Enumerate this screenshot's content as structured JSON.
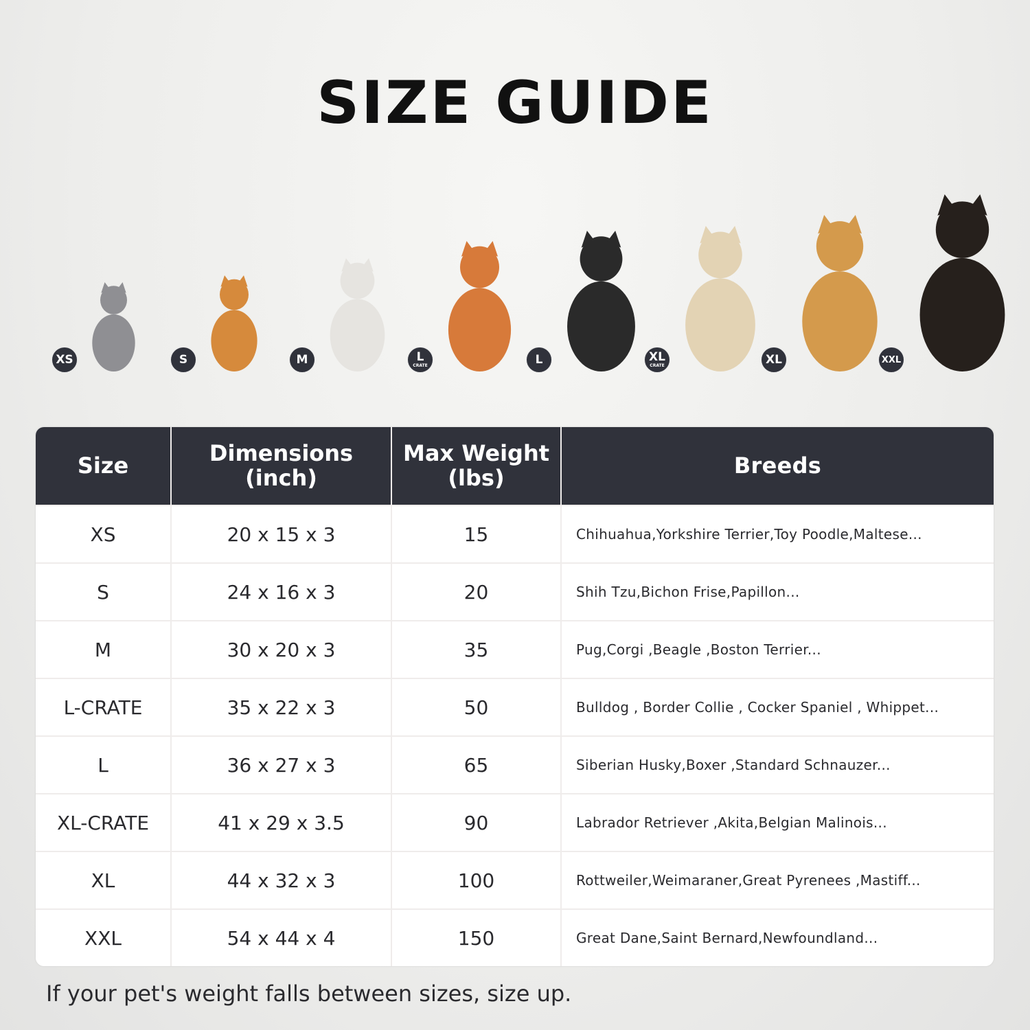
{
  "title": "SIZE GUIDE",
  "pets": [
    {
      "badge": "XS",
      "sub": "",
      "animal": "cat",
      "color": "#8f8f93"
    },
    {
      "badge": "S",
      "sub": "",
      "animal": "pomeranian",
      "color": "#d68a3c"
    },
    {
      "badge": "M",
      "sub": "",
      "animal": "french-bulldog",
      "color": "#e6e4e0"
    },
    {
      "badge": "L",
      "sub": "CRATE",
      "animal": "shiba-inu",
      "color": "#d77a3a"
    },
    {
      "badge": "L",
      "sub": "",
      "animal": "border-collie",
      "color": "#2a2a2a"
    },
    {
      "badge": "XL",
      "sub": "CRATE",
      "animal": "labrador",
      "color": "#e3d3b4"
    },
    {
      "badge": "XL",
      "sub": "",
      "animal": "golden-retriever",
      "color": "#d49a4c"
    },
    {
      "badge": "XXL",
      "sub": "",
      "animal": "doberman",
      "color": "#26201c"
    }
  ],
  "table": {
    "headers": {
      "size": "Size",
      "dimensions": "Dimensions\n(inch)",
      "weight": "Max Weight\n(lbs)",
      "breeds": "Breeds"
    },
    "rows": [
      {
        "size": "XS",
        "dimensions": "20 x 15 x 3",
        "weight": "15",
        "breeds": "Chihuahua,Yorkshire Terrier,Toy Poodle,Maltese..."
      },
      {
        "size": "S",
        "dimensions": "24 x 16 x 3",
        "weight": "20",
        "breeds": "Shih Tzu,Bichon Frise,Papillon..."
      },
      {
        "size": "M",
        "dimensions": "30 x 20 x 3",
        "weight": "35",
        "breeds": "Pug,Corgi ,Beagle ,Boston Terrier..."
      },
      {
        "size": "L-CRATE",
        "dimensions": "35 x 22 x 3",
        "weight": "50",
        "breeds": "Bulldog , Border Collie , Cocker Spaniel , Whippet..."
      },
      {
        "size": "L",
        "dimensions": "36 x 27 x 3",
        "weight": "65",
        "breeds": "Siberian Husky,Boxer ,Standard Schnauzer..."
      },
      {
        "size": "XL-CRATE",
        "dimensions": "41 x 29 x 3.5",
        "weight": "90",
        "breeds": "Labrador Retriever ,Akita,Belgian Malinois..."
      },
      {
        "size": "XL",
        "dimensions": "44 x 32 x 3",
        "weight": "100",
        "breeds": "Rottweiler,Weimaraner,Great Pyrenees ,Mastiff..."
      },
      {
        "size": "XXL",
        "dimensions": "54 x 44 x 4",
        "weight": "150",
        "breeds": "Great Dane,Saint Bernard,Newfoundland..."
      }
    ]
  },
  "note": "If your pet's weight falls between sizes, size up.",
  "colors": {
    "header": "#30323b",
    "badge": "#30323b"
  }
}
